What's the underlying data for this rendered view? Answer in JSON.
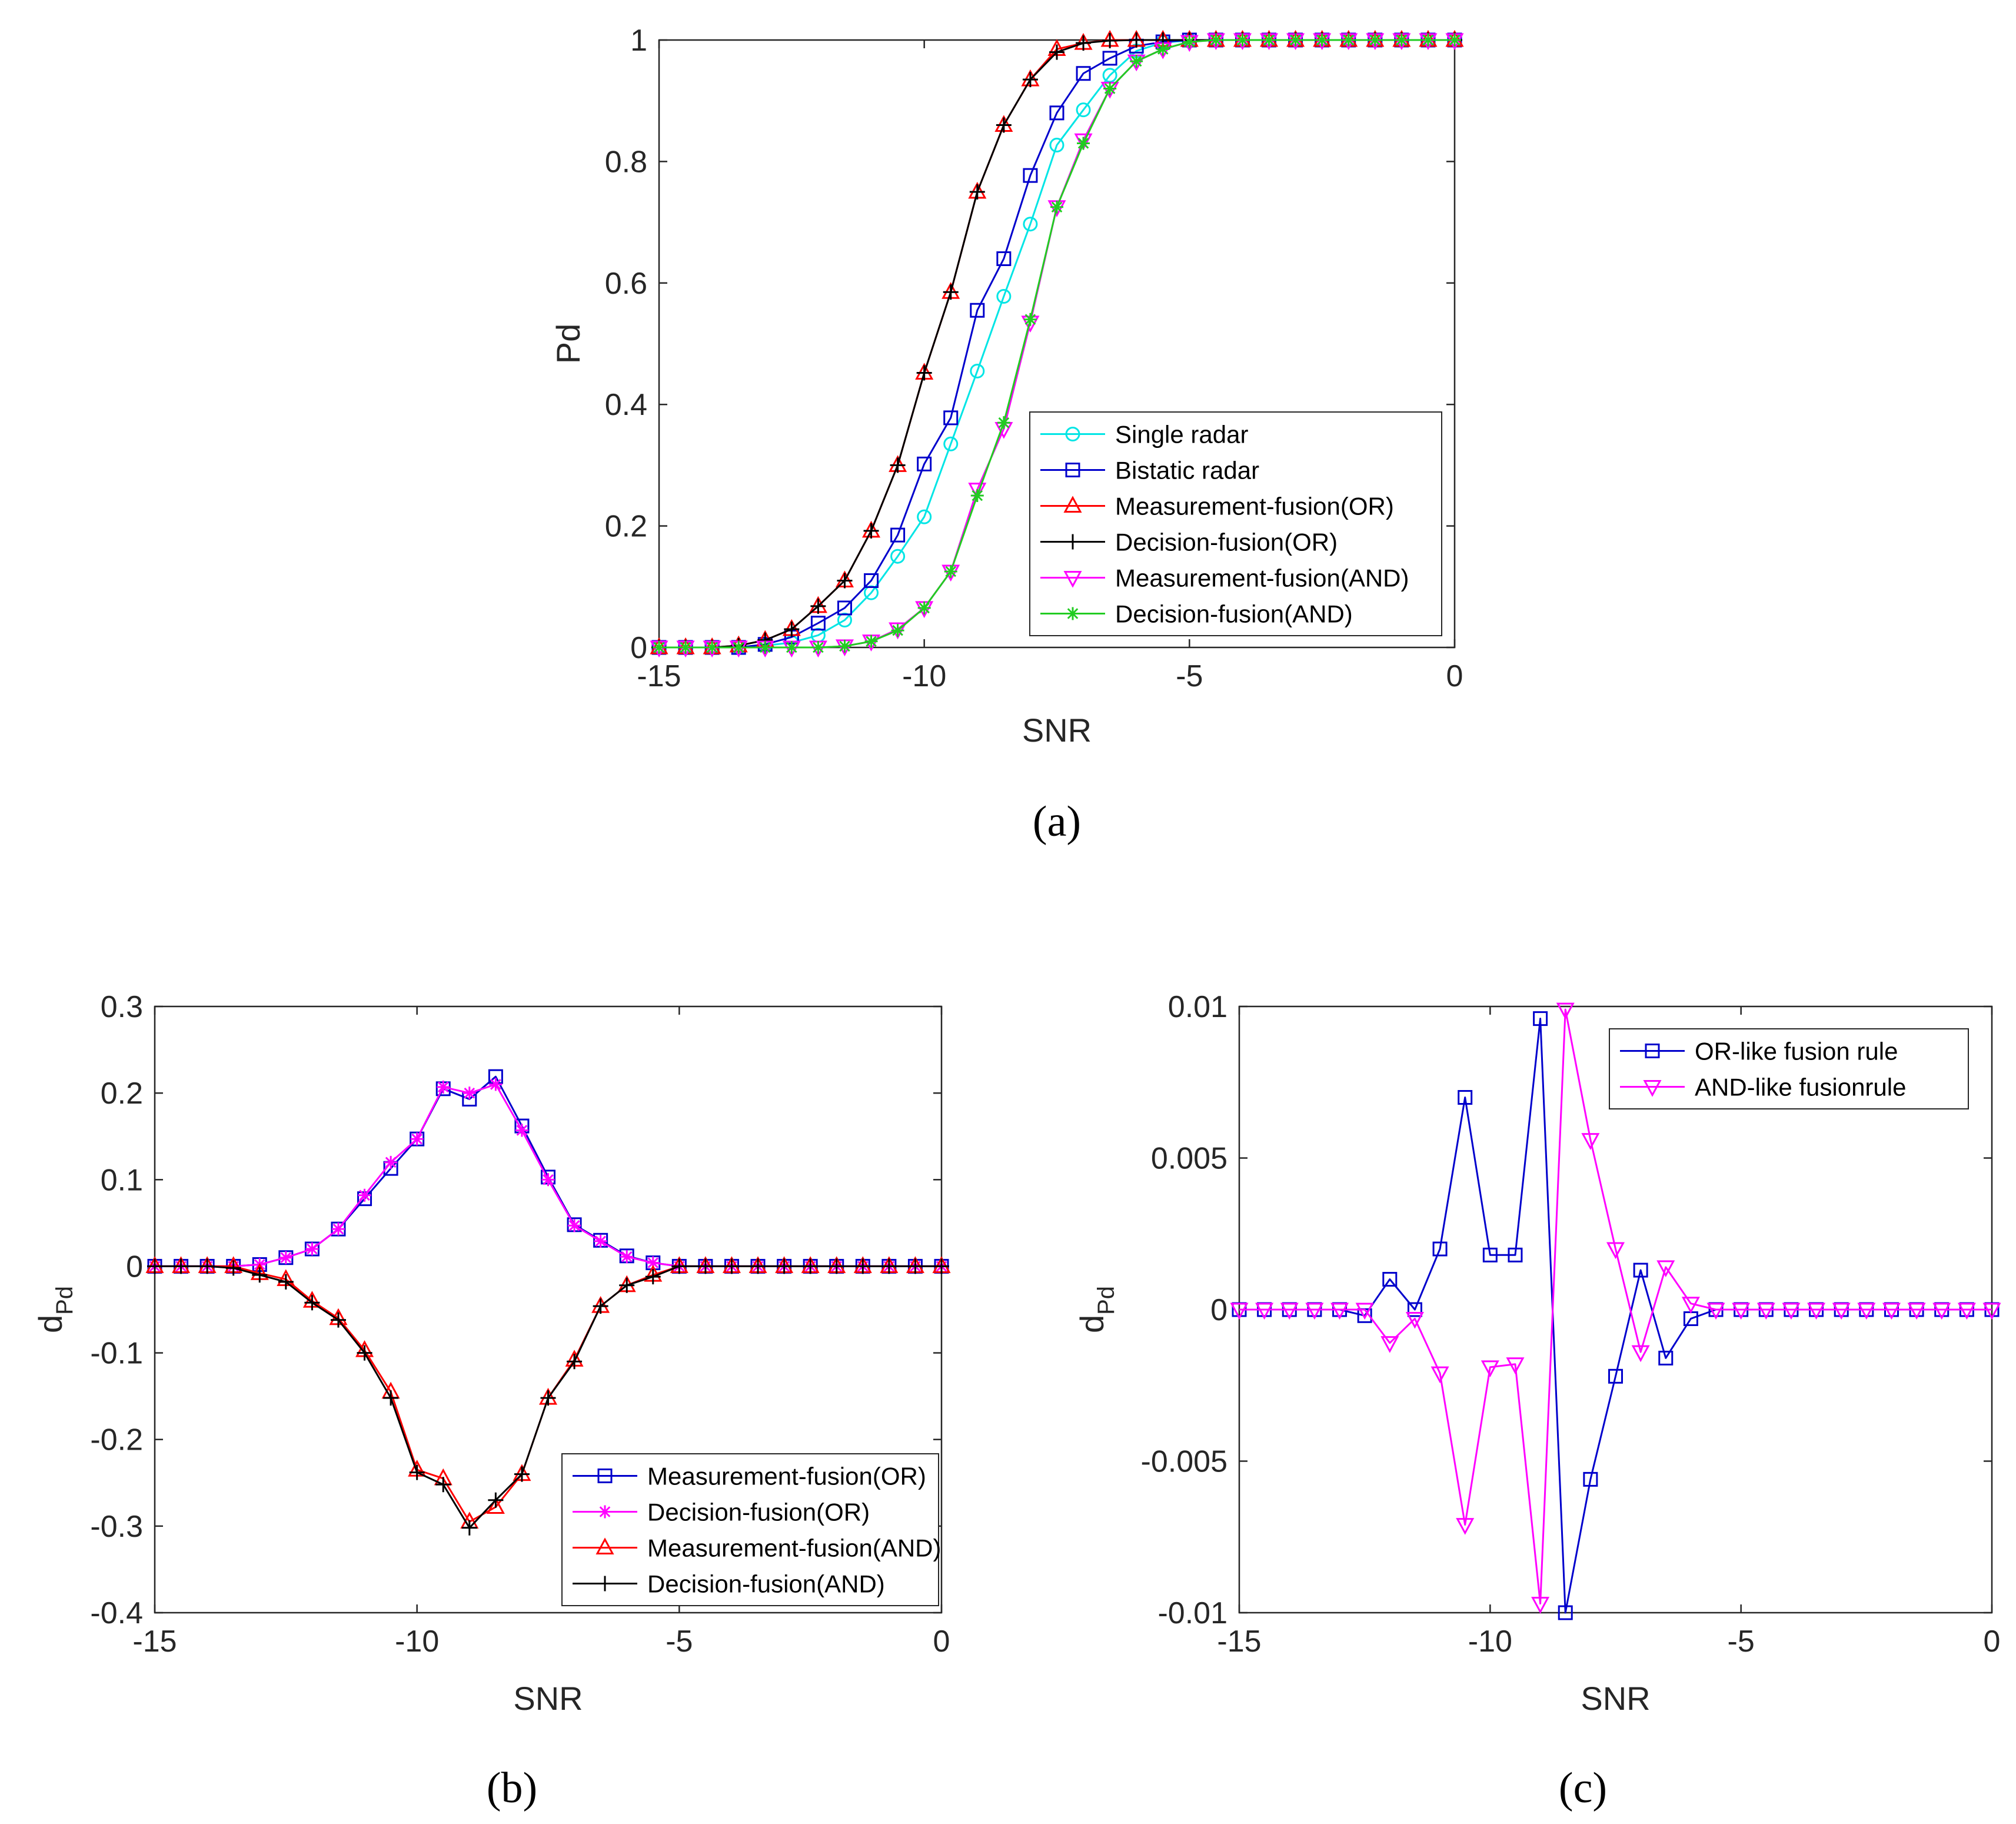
{
  "chart_data": [
    {
      "id": "a",
      "type": "line",
      "caption": "(a)",
      "xlabel": "SNR",
      "ylabel": "Pd",
      "ylabel_sub": "",
      "xlim": [
        -15,
        0
      ],
      "ylim": [
        0,
        1
      ],
      "xticks": [
        -15,
        -10,
        -5,
        0
      ],
      "xtick_labels": [
        "-15",
        "-10",
        "-5",
        "0"
      ],
      "yticks": [
        0,
        0.2,
        0.4,
        0.6,
        0.8,
        1
      ],
      "ytick_labels": [
        "0",
        "0.2",
        "0.4",
        "0.6",
        "0.8",
        "1"
      ],
      "grid": false,
      "legend_position": "bottom-right",
      "x": [
        -15,
        -14.5,
        -14,
        -13.5,
        -13,
        -12.5,
        -12,
        -11.5,
        -11,
        -10.5,
        -10,
        -9.5,
        -9,
        -8.5,
        -8,
        -7.5,
        -7,
        -6.5,
        -6,
        -5.5,
        -5,
        -4.5,
        -4,
        -3.5,
        -3,
        -2.5,
        -2,
        -1.5,
        -1,
        -0.5,
        0
      ],
      "series": [
        {
          "name": "Single radar",
          "color": "#00e5e5",
          "marker": "circle",
          "values": [
            0,
            0,
            0,
            0,
            0.003,
            0.008,
            0.02,
            0.045,
            0.09,
            0.15,
            0.215,
            0.335,
            0.455,
            0.578,
            0.697,
            0.827,
            0.885,
            0.942,
            0.982,
            0.996,
            0.999,
            1,
            1,
            1,
            1,
            1,
            1,
            1,
            1,
            1,
            1
          ]
        },
        {
          "name": "Bistatic radar",
          "color": "#0000cc",
          "marker": "square",
          "values": [
            0,
            0,
            0,
            0,
            0.005,
            0.017,
            0.04,
            0.065,
            0.11,
            0.185,
            0.302,
            0.378,
            0.555,
            0.64,
            0.777,
            0.88,
            0.945,
            0.97,
            0.99,
            0.997,
            1,
            1,
            1,
            1,
            1,
            1,
            1,
            1,
            1,
            1,
            1
          ]
        },
        {
          "name": "Measurement-fusion(OR)",
          "color": "#ff0000",
          "marker": "triangle-up",
          "values": [
            0,
            0,
            0,
            0.003,
            0.012,
            0.03,
            0.068,
            0.11,
            0.192,
            0.3,
            0.452,
            0.585,
            0.75,
            0.86,
            0.935,
            0.985,
            0.995,
            1,
            1,
            1,
            1,
            1,
            1,
            1,
            1,
            1,
            1,
            1,
            1,
            1,
            1
          ]
        },
        {
          "name": "Decision-fusion(OR)",
          "color": "#000000",
          "marker": "plus",
          "values": [
            0,
            0,
            0,
            0.003,
            0.012,
            0.03,
            0.068,
            0.11,
            0.192,
            0.3,
            0.452,
            0.585,
            0.75,
            0.86,
            0.935,
            0.98,
            0.995,
            0.999,
            1,
            1,
            1,
            1,
            1,
            1,
            1,
            1,
            1,
            1,
            1,
            1,
            1
          ]
        },
        {
          "name": "Measurement-fusion(AND)",
          "color": "#ff00ff",
          "marker": "triangle-down",
          "values": [
            0,
            0,
            0,
            0,
            0,
            0,
            0,
            0.002,
            0.01,
            0.03,
            0.065,
            0.125,
            0.26,
            0.36,
            0.535,
            0.725,
            0.835,
            0.92,
            0.965,
            0.985,
            0.997,
            1,
            1,
            1,
            1,
            1,
            1,
            1,
            1,
            1,
            1
          ]
        },
        {
          "name": "Decision-fusion(AND)",
          "color": "#22cc22",
          "marker": "asterisk",
          "values": [
            0,
            0,
            0,
            0,
            0,
            0,
            0,
            0.002,
            0.01,
            0.028,
            0.065,
            0.125,
            0.25,
            0.37,
            0.54,
            0.725,
            0.83,
            0.92,
            0.965,
            0.985,
            0.997,
            1,
            1,
            1,
            1,
            1,
            1,
            1,
            1,
            1,
            1
          ]
        }
      ]
    },
    {
      "id": "b",
      "type": "line",
      "caption": "(b)",
      "xlabel": "SNR",
      "ylabel": "d",
      "ylabel_sub": "Pd",
      "xlim": [
        -15,
        0
      ],
      "ylim": [
        -0.4,
        0.3
      ],
      "xticks": [
        -15,
        -10,
        -5,
        0
      ],
      "xtick_labels": [
        "-15",
        "-10",
        "-5",
        "0"
      ],
      "yticks": [
        -0.4,
        -0.3,
        -0.2,
        -0.1,
        0,
        0.1,
        0.2,
        0.3
      ],
      "ytick_labels": [
        "-0.4",
        "-0.3",
        "-0.2",
        "-0.1",
        "0",
        "0.1",
        "0.2",
        "0.3"
      ],
      "grid": false,
      "legend_position": "bottom-right",
      "x": [
        -15,
        -14.5,
        -14,
        -13.5,
        -13,
        -12.5,
        -12,
        -11.5,
        -11,
        -10.5,
        -10,
        -9.5,
        -9,
        -8.5,
        -8,
        -7.5,
        -7,
        -6.5,
        -6,
        -5.5,
        -5,
        -4.5,
        -4,
        -3.5,
        -3,
        -2.5,
        -2,
        -1.5,
        -1,
        -0.5,
        0
      ],
      "series": [
        {
          "name": "Measurement-fusion(OR)",
          "color": "#0000cc",
          "marker": "square",
          "values": [
            0,
            0,
            0,
            0,
            0.002,
            0.01,
            0.02,
            0.043,
            0.078,
            0.113,
            0.147,
            0.205,
            0.193,
            0.219,
            0.162,
            0.103,
            0.048,
            0.03,
            0.012,
            0.004,
            0,
            0,
            0,
            0,
            0,
            0,
            0,
            0,
            0,
            0,
            0
          ]
        },
        {
          "name": "Decision-fusion(OR)",
          "color": "#ff00ff",
          "marker": "asterisk",
          "values": [
            0,
            0,
            0,
            0,
            0.002,
            0.01,
            0.02,
            0.043,
            0.082,
            0.12,
            0.147,
            0.207,
            0.2,
            0.21,
            0.157,
            0.1,
            0.047,
            0.029,
            0.011,
            0.004,
            0,
            0,
            0,
            0,
            0,
            0,
            0,
            0,
            0,
            0,
            0
          ]
        },
        {
          "name": "Measurement-fusion(AND)",
          "color": "#ff0000",
          "marker": "triangle-up",
          "values": [
            0,
            0,
            0,
            0,
            -0.008,
            -0.015,
            -0.04,
            -0.06,
            -0.097,
            -0.145,
            -0.235,
            -0.245,
            -0.295,
            -0.278,
            -0.24,
            -0.152,
            -0.108,
            -0.046,
            -0.022,
            -0.01,
            0,
            0,
            0,
            0,
            0,
            0,
            0,
            0,
            0,
            0,
            0
          ]
        },
        {
          "name": "Decision-fusion(AND)",
          "color": "#000000",
          "marker": "plus",
          "values": [
            0,
            0,
            0,
            -0.002,
            -0.01,
            -0.018,
            -0.042,
            -0.062,
            -0.1,
            -0.152,
            -0.238,
            -0.252,
            -0.302,
            -0.27,
            -0.24,
            -0.152,
            -0.11,
            -0.046,
            -0.022,
            -0.012,
            0,
            0,
            0,
            0,
            0,
            0,
            0,
            0,
            0,
            0,
            0
          ]
        }
      ]
    },
    {
      "id": "c",
      "type": "line",
      "caption": "(c)",
      "xlabel": "SNR",
      "ylabel": "d",
      "ylabel_sub": "Pd",
      "xlim": [
        -15,
        0
      ],
      "ylim": [
        -0.01,
        0.01
      ],
      "xticks": [
        -15,
        -10,
        -5,
        0
      ],
      "xtick_labels": [
        "-15",
        "-10",
        "-5",
        "0"
      ],
      "yticks": [
        -0.01,
        -0.005,
        0,
        0.005,
        0.01
      ],
      "ytick_labels": [
        "-0.01",
        "-0.005",
        "0",
        "0.005",
        "0.01"
      ],
      "grid": false,
      "legend_position": "top-right",
      "x": [
        -15,
        -14.5,
        -14,
        -13.5,
        -13,
        -12.5,
        -12,
        -11.5,
        -11,
        -10.5,
        -10,
        -9.5,
        -9,
        -8.5,
        -8,
        -7.5,
        -7,
        -6.5,
        -6,
        -5.5,
        -5,
        -4.5,
        -4,
        -3.5,
        -3,
        -2.5,
        -2,
        -1.5,
        -1,
        -0.5,
        0
      ],
      "series": [
        {
          "name": "OR-like fusion rule",
          "color": "#0000cc",
          "marker": "square",
          "values": [
            0,
            0,
            0,
            0,
            0,
            -0.0002,
            0.001,
            0,
            0.002,
            0.007,
            0.0018,
            0.0018,
            0.0096,
            -0.01,
            -0.0056,
            -0.0022,
            0.0013,
            -0.0016,
            -0.0003,
            0,
            0,
            0,
            0,
            0,
            0,
            0,
            0,
            0,
            0,
            0,
            0
          ]
        },
        {
          "name": "AND-like fusionrule",
          "color": "#ff00ff",
          "marker": "triangle-down",
          "values": [
            0,
            0,
            0,
            0,
            0,
            0,
            -0.0011,
            -0.0003,
            -0.0021,
            -0.0071,
            -0.0019,
            -0.0018,
            -0.0097,
            0.0099,
            0.0056,
            0.002,
            -0.0014,
            0.0014,
            0.0002,
            0,
            0,
            0,
            0,
            0,
            0,
            0,
            0,
            0,
            0,
            0,
            0
          ]
        }
      ]
    }
  ]
}
